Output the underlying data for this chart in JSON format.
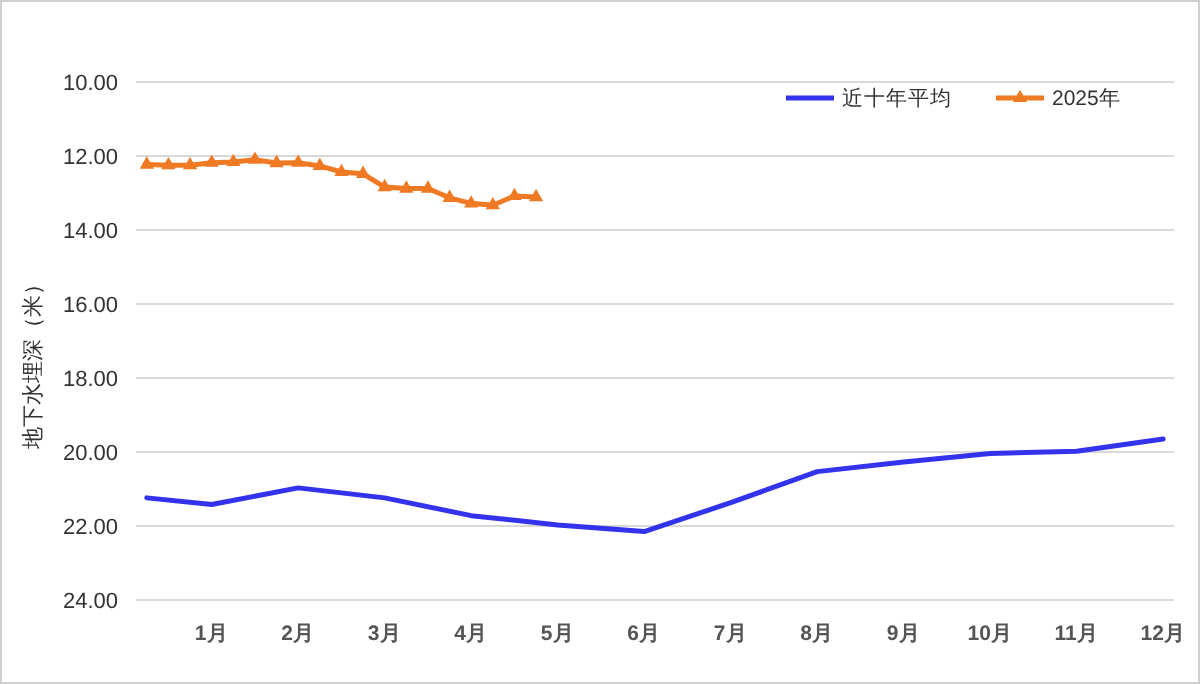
{
  "chart_data": {
    "type": "line",
    "ylabel": "地下水埋深（米）",
    "xlim": [
      0.125,
      12.125
    ],
    "xticks": [
      {
        "value": 1,
        "label": "1月"
      },
      {
        "value": 2,
        "label": "2月"
      },
      {
        "value": 3,
        "label": "3月"
      },
      {
        "value": 4,
        "label": "4月"
      },
      {
        "value": 5,
        "label": "5月"
      },
      {
        "value": 6,
        "label": "6月"
      },
      {
        "value": 7,
        "label": "7月"
      },
      {
        "value": 8,
        "label": "8月"
      },
      {
        "value": 9,
        "label": "9月"
      },
      {
        "value": 10,
        "label": "10月"
      },
      {
        "value": 11,
        "label": "11月"
      },
      {
        "value": 12,
        "label": "12月"
      }
    ],
    "ylim": [
      24,
      10
    ],
    "yticks": [
      {
        "value": 10,
        "label": "10.00"
      },
      {
        "value": 12,
        "label": "12.00"
      },
      {
        "value": 14,
        "label": "14.00"
      },
      {
        "value": 16,
        "label": "16.00"
      },
      {
        "value": 18,
        "label": "18.00"
      },
      {
        "value": 20,
        "label": "20.00"
      },
      {
        "value": 22,
        "label": "22.00"
      },
      {
        "value": 24,
        "label": "24.00"
      }
    ],
    "grid": "y",
    "legend": "top right",
    "series": [
      {
        "name": "近十年平均",
        "color": "#3333ee",
        "marker": "none",
        "x": [
          0.25,
          1,
          2,
          3,
          4,
          5,
          6,
          7,
          8,
          9,
          10,
          11,
          12
        ],
        "values": [
          21.24,
          21.42,
          20.97,
          21.24,
          21.72,
          21.97,
          22.15,
          21.37,
          20.53,
          20.27,
          20.04,
          19.98,
          19.65
        ]
      },
      {
        "name": "2025年",
        "color": "#f07a23",
        "marker": "triangle",
        "x": [
          0.25,
          0.5,
          0.75,
          1,
          1.25,
          1.5,
          1.75,
          2,
          2.25,
          2.5,
          2.75,
          3,
          3.25,
          3.5,
          3.75,
          4,
          4.25,
          4.5,
          4.75
        ],
        "values": [
          12.23,
          12.25,
          12.25,
          12.18,
          12.16,
          12.1,
          12.19,
          12.18,
          12.27,
          12.43,
          12.48,
          12.84,
          12.88,
          12.88,
          13.13,
          13.28,
          13.33,
          13.08,
          13.11
        ]
      }
    ]
  }
}
